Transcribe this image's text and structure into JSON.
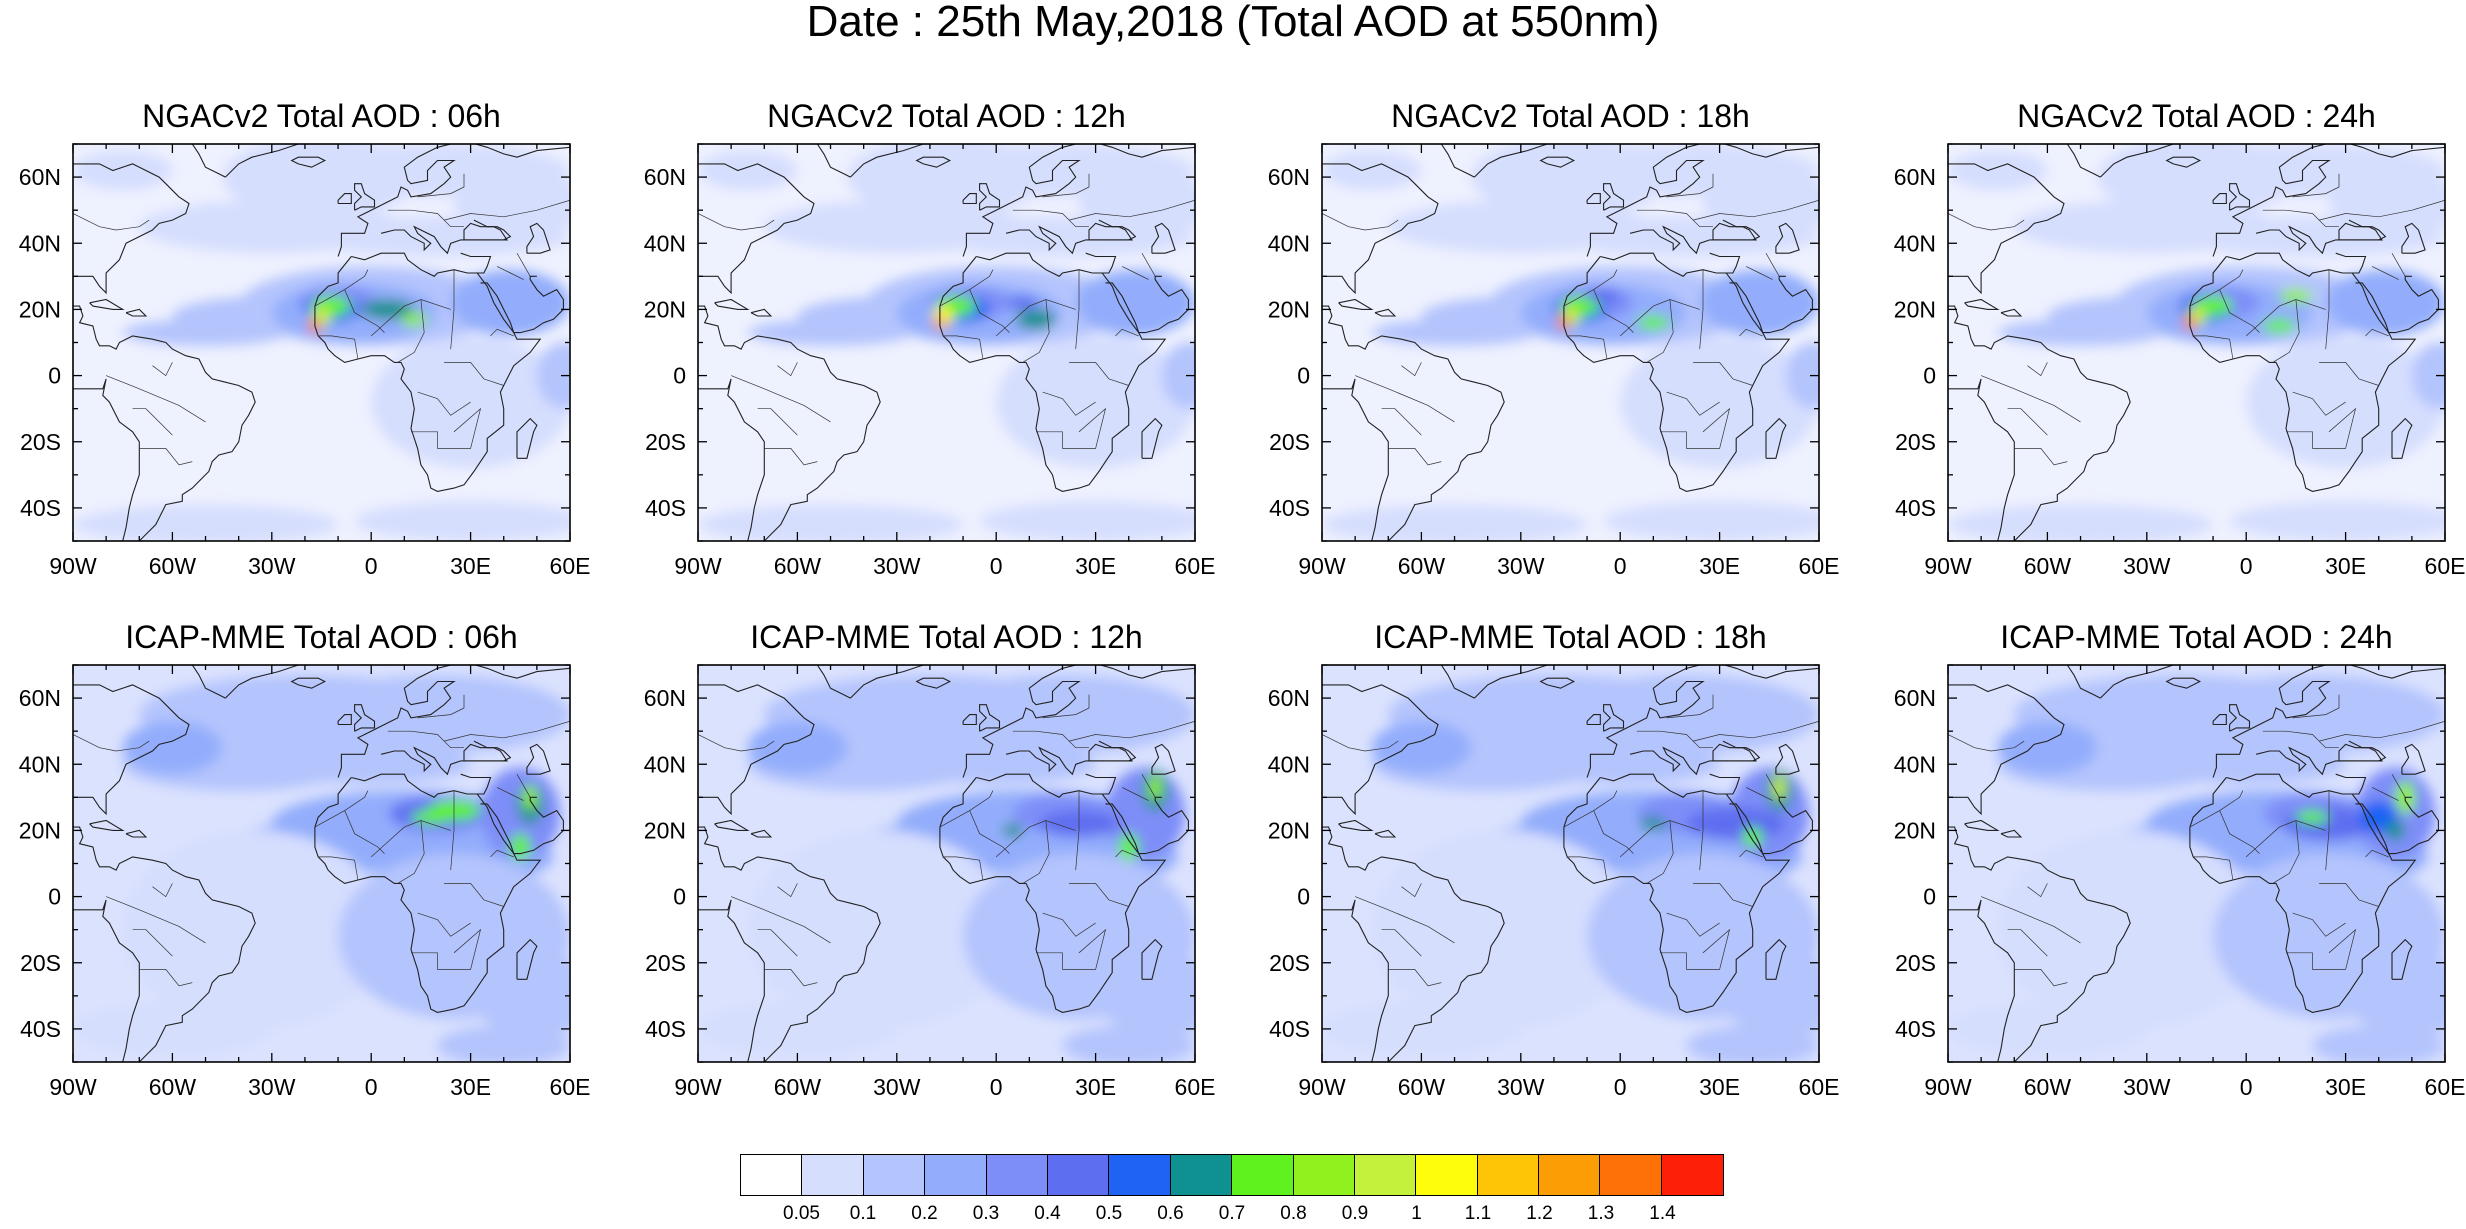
{
  "title": "Date : 25th May,2018 (Total AOD at 550nm)",
  "rows": [
    {
      "model": "NGACv2",
      "titles": [
        "NGACv2 Total AOD : 06h",
        "NGACv2 Total AOD : 12h",
        "NGACv2 Total AOD : 18h",
        "NGACv2 Total AOD : 24h"
      ]
    },
    {
      "model": "ICAP-MME",
      "titles": [
        "ICAP-MME Total AOD : 06h",
        "ICAP-MME Total AOD : 12h",
        "ICAP-MME Total AOD : 18h",
        "ICAP-MME Total AOD : 24h"
      ]
    }
  ],
  "lat_ticks": [
    {
      "value": 60,
      "label": "60N"
    },
    {
      "value": 40,
      "label": "40N"
    },
    {
      "value": 20,
      "label": "20N"
    },
    {
      "value": 0,
      "label": "0"
    },
    {
      "value": -20,
      "label": "20S"
    },
    {
      "value": -40,
      "label": "40S"
    }
  ],
  "lon_ticks": [
    {
      "value": -90,
      "label": "90W"
    },
    {
      "value": -60,
      "label": "60W"
    },
    {
      "value": -30,
      "label": "30W"
    },
    {
      "value": 0,
      "label": "0"
    },
    {
      "value": 30,
      "label": "30E"
    },
    {
      "value": 60,
      "label": "60E"
    }
  ],
  "map_extent": {
    "lon": [
      -90,
      60
    ],
    "lat": [
      -50,
      70
    ]
  },
  "colorbar": {
    "colors": [
      "#ffffff",
      "#d6defe",
      "#b4c4fd",
      "#93adfc",
      "#7e8ef8",
      "#5e6ef0",
      "#1f63f5",
      "#0f9191",
      "#5ff21f",
      "#8ff21f",
      "#c4f23c",
      "#fdfd0c",
      "#fdc506",
      "#fd9d06",
      "#fd7106",
      "#fd2006"
    ],
    "labels": [
      "0.05",
      "0.1",
      "0.2",
      "0.3",
      "0.4",
      "0.5",
      "0.6",
      "0.7",
      "0.8",
      "0.9",
      "1",
      "1.1",
      "1.2",
      "1.3",
      "1.4"
    ]
  }
}
